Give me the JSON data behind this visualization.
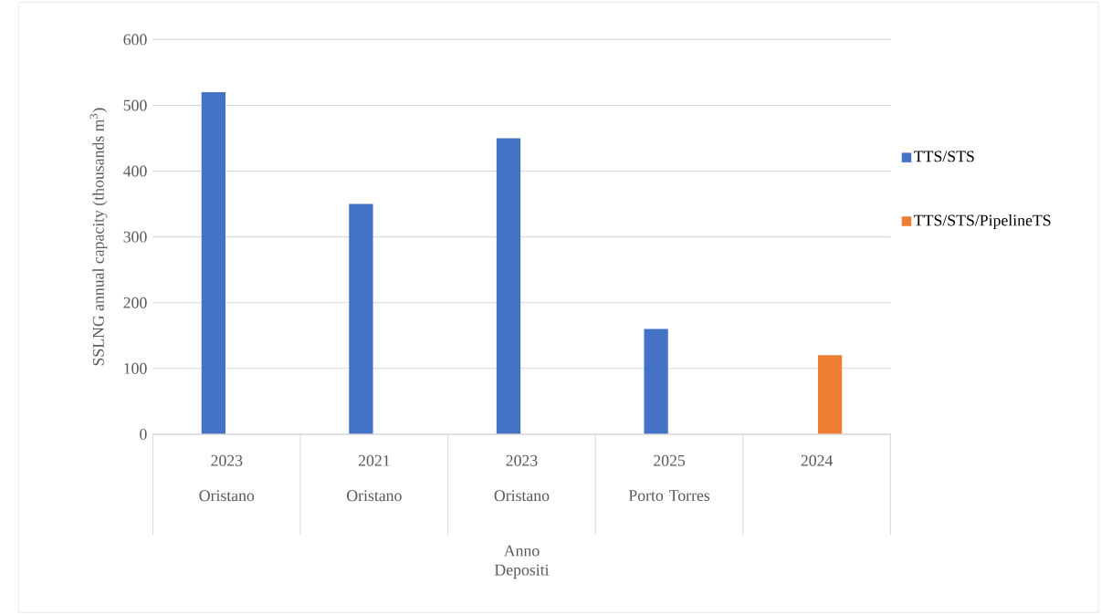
{
  "chart_data": {
    "type": "bar",
    "ylabel": "SSLNG annual capacity (thousands m$^{3}$)",
    "xlabel": "Depositi",
    "categories": [
      "Oristano",
      "Oristano",
      "Oristano",
      "Porto Torres",
      null
    ],
    "annotations": [
      "Anno",
      "2023",
      "2021",
      "2023",
      "2025",
      "2024"
    ],
    "series": [
      {
        "name": "TTS/STS",
        "color": "#4472c4",
        "values": [
          520,
          350,
          450,
          160,
          null
        ]
      },
      {
        "name": "TTS/STS/PipelineTS",
        "color": "#ed7d31",
        "values": [
          null,
          null,
          null,
          null,
          120
        ]
      }
    ],
    "ylim": [
      0,
      600
    ],
    "yticks": [
      0,
      100,
      200,
      300,
      400,
      500,
      600
    ],
    "grid": "y",
    "legend": "right"
  }
}
